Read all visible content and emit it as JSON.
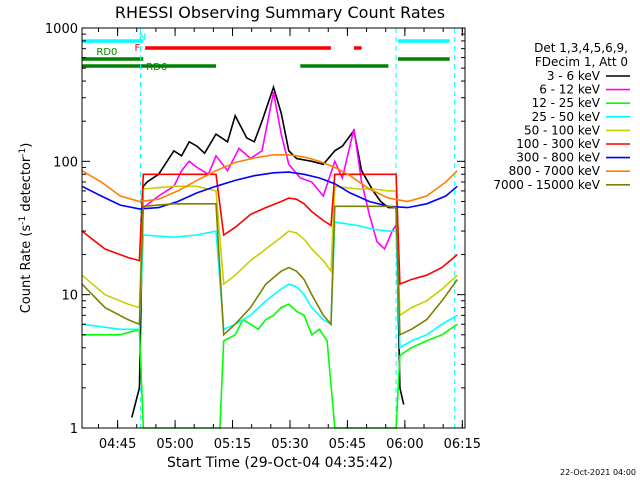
{
  "chart_data": {
    "type": "line",
    "title": "RHESSI Observing Summary Count Rates",
    "xlabel": "Start Time (29-Oct-04 04:35:42)",
    "ylabel_main": "Count Rate (s",
    "ylabel_sup": "-1",
    "ylabel_rest": " detector",
    "ylabel_sup2": "-1",
    "ylabel_close": ")",
    "y_scale": "log",
    "ylim": [
      1,
      1000
    ],
    "xlim_minutes": [
      0,
      100
    ],
    "y_ticks": [
      {
        "label": "1",
        "value": 1
      },
      {
        "label": "10",
        "value": 10
      },
      {
        "label": "100",
        "value": 100
      },
      {
        "label": "1000",
        "value": 1000
      }
    ],
    "x_ticks": [
      {
        "label": "04:45",
        "minute": 9.3
      },
      {
        "label": "05:00",
        "minute": 24.3
      },
      {
        "label": "05:15",
        "minute": 39.3
      },
      {
        "label": "05:30",
        "minute": 54.3
      },
      {
        "label": "05:45",
        "minute": 69.3
      },
      {
        "label": "06:00",
        "minute": 84.3
      },
      {
        "label": "06:15",
        "minute": 99.3
      }
    ],
    "legend_header": [
      "Det 1,3,4,5,6,9,",
      "FDecim 1, Att 0"
    ],
    "legend_position": "right",
    "flag_labels": {
      "night": "N",
      "flare": "F",
      "rd0": "RD0",
      "rd6": "RD6"
    },
    "flags": {
      "night": {
        "color": "#00ffff",
        "segments": [
          [
            0,
            16
          ],
          [
            82.5,
            96
          ]
        ]
      },
      "flare": {
        "color": "#ff0000",
        "segments": [
          [
            16.5,
            65
          ],
          [
            71,
            73
          ]
        ]
      },
      "rd0": {
        "color": "#008000",
        "segments": [
          [
            0,
            16
          ],
          [
            82.5,
            96
          ]
        ]
      },
      "rd6": {
        "color": "#008000",
        "segments": [
          [
            0,
            35
          ],
          [
            57,
            80
          ]
        ]
      }
    },
    "vlines": [
      {
        "minute": 15.3,
        "color": "#00ffff",
        "dashed": true
      },
      {
        "minute": 82.0,
        "color": "#00ffff",
        "dashed": true
      },
      {
        "minute": 97.3,
        "color": "#00ffff",
        "dashed": true
      }
    ],
    "series": [
      {
        "name": "3 - 6 keV",
        "color": "#000000",
        "points": [
          [
            13,
            1.2
          ],
          [
            15,
            2.0
          ],
          [
            16,
            65
          ],
          [
            17,
            70
          ],
          [
            20,
            80
          ],
          [
            24,
            120
          ],
          [
            26,
            110
          ],
          [
            28,
            140
          ],
          [
            30,
            130
          ],
          [
            32,
            115
          ],
          [
            35,
            160
          ],
          [
            38,
            140
          ],
          [
            40,
            220
          ],
          [
            43,
            150
          ],
          [
            45,
            140
          ],
          [
            47,
            200
          ],
          [
            50,
            360
          ],
          [
            52,
            230
          ],
          [
            54,
            120
          ],
          [
            56,
            105
          ],
          [
            60,
            100
          ],
          [
            63,
            95
          ],
          [
            66,
            120
          ],
          [
            68,
            130
          ],
          [
            71,
            170
          ],
          [
            73,
            85
          ],
          [
            76,
            60
          ],
          [
            78,
            50
          ],
          [
            80,
            45
          ],
          [
            82,
            45
          ],
          [
            83,
            2.0
          ],
          [
            84,
            1.5
          ]
        ]
      },
      {
        "name": "6 - 12 keV",
        "color": "#ff00ff",
        "points": [
          [
            16,
            45
          ],
          [
            20,
            55
          ],
          [
            24,
            65
          ],
          [
            26,
            85
          ],
          [
            28,
            100
          ],
          [
            30,
            90
          ],
          [
            33,
            80
          ],
          [
            35,
            110
          ],
          [
            38,
            85
          ],
          [
            41,
            125
          ],
          [
            44,
            105
          ],
          [
            47,
            120
          ],
          [
            50,
            330
          ],
          [
            52,
            160
          ],
          [
            54,
            95
          ],
          [
            57,
            75
          ],
          [
            60,
            70
          ],
          [
            63,
            55
          ],
          [
            66,
            100
          ],
          [
            68,
            75
          ],
          [
            71,
            175
          ],
          [
            73,
            70
          ],
          [
            75,
            40
          ],
          [
            77,
            25
          ],
          [
            79,
            22
          ],
          [
            81,
            30
          ],
          [
            82.5,
            35
          ]
        ]
      },
      {
        "name": "12 - 25 keV",
        "color": "#00ff00",
        "points": [
          [
            0,
            5
          ],
          [
            10,
            5
          ],
          [
            15,
            5.5
          ],
          [
            16,
            1.0
          ],
          [
            36,
            1.0
          ],
          [
            37,
            4.5
          ],
          [
            40,
            5
          ],
          [
            42,
            6.5
          ],
          [
            44,
            6
          ],
          [
            46,
            5.5
          ],
          [
            48,
            6.5
          ],
          [
            50,
            7
          ],
          [
            52,
            8
          ],
          [
            54,
            8.5
          ],
          [
            56,
            7.5
          ],
          [
            58,
            7
          ],
          [
            60,
            5
          ],
          [
            62,
            5.5
          ],
          [
            64,
            4.5
          ],
          [
            66,
            1.0
          ],
          [
            82,
            1.0
          ],
          [
            83,
            3.5
          ],
          [
            86,
            4
          ],
          [
            90,
            4.5
          ],
          [
            94,
            5
          ],
          [
            98,
            6
          ]
        ]
      },
      {
        "name": "25 - 50 keV",
        "color": "#00ffff",
        "points": [
          [
            0,
            6
          ],
          [
            10,
            5.5
          ],
          [
            15,
            5.5
          ],
          [
            16,
            28
          ],
          [
            24,
            27
          ],
          [
            30,
            28
          ],
          [
            35,
            30
          ],
          [
            37,
            5.5
          ],
          [
            40,
            6
          ],
          [
            44,
            7
          ],
          [
            48,
            9
          ],
          [
            52,
            11
          ],
          [
            54,
            12
          ],
          [
            56,
            11.5
          ],
          [
            58,
            10
          ],
          [
            60,
            8
          ],
          [
            63,
            6.5
          ],
          [
            65,
            6
          ],
          [
            66,
            35
          ],
          [
            72,
            33
          ],
          [
            76,
            31
          ],
          [
            80,
            30
          ],
          [
            82,
            30
          ],
          [
            83,
            4
          ],
          [
            86,
            4.5
          ],
          [
            90,
            5
          ],
          [
            94,
            6
          ],
          [
            98,
            7
          ]
        ]
      },
      {
        "name": "50 - 100 keV",
        "color": "#cccc00",
        "points": [
          [
            0,
            14
          ],
          [
            6,
            10
          ],
          [
            12,
            8.5
          ],
          [
            15,
            8
          ],
          [
            16,
            62
          ],
          [
            24,
            65
          ],
          [
            30,
            65
          ],
          [
            35,
            60
          ],
          [
            37,
            12
          ],
          [
            40,
            14
          ],
          [
            44,
            18
          ],
          [
            48,
            22
          ],
          [
            52,
            27
          ],
          [
            54,
            30
          ],
          [
            56,
            29
          ],
          [
            58,
            26
          ],
          [
            60,
            22
          ],
          [
            63,
            18
          ],
          [
            65,
            15
          ],
          [
            66,
            65
          ],
          [
            72,
            62
          ],
          [
            76,
            62
          ],
          [
            80,
            60
          ],
          [
            82,
            60
          ],
          [
            83,
            7
          ],
          [
            86,
            8
          ],
          [
            90,
            9
          ],
          [
            94,
            11
          ],
          [
            98,
            14
          ]
        ]
      },
      {
        "name": "100 - 300 keV",
        "color": "#ff0000",
        "points": [
          [
            0,
            30
          ],
          [
            6,
            22
          ],
          [
            12,
            19
          ],
          [
            15,
            18
          ],
          [
            16,
            80
          ],
          [
            24,
            80
          ],
          [
            30,
            80
          ],
          [
            35,
            80
          ],
          [
            37,
            28
          ],
          [
            40,
            32
          ],
          [
            44,
            40
          ],
          [
            48,
            45
          ],
          [
            52,
            50
          ],
          [
            54,
            53
          ],
          [
            56,
            52
          ],
          [
            58,
            48
          ],
          [
            60,
            42
          ],
          [
            63,
            36
          ],
          [
            65,
            33
          ],
          [
            66,
            80
          ],
          [
            72,
            80
          ],
          [
            76,
            80
          ],
          [
            80,
            80
          ],
          [
            82,
            80
          ],
          [
            83,
            12
          ],
          [
            86,
            13
          ],
          [
            90,
            14
          ],
          [
            94,
            16
          ],
          [
            98,
            20
          ]
        ]
      },
      {
        "name": "300 - 800 keV",
        "color": "#0000ff",
        "points": [
          [
            0,
            65
          ],
          [
            5,
            55
          ],
          [
            10,
            47
          ],
          [
            15,
            44
          ],
          [
            20,
            45
          ],
          [
            25,
            50
          ],
          [
            30,
            58
          ],
          [
            35,
            65
          ],
          [
            40,
            72
          ],
          [
            45,
            78
          ],
          [
            50,
            82
          ],
          [
            54,
            83
          ],
          [
            58,
            80
          ],
          [
            62,
            75
          ],
          [
            66,
            68
          ],
          [
            70,
            58
          ],
          [
            75,
            50
          ],
          [
            80,
            46
          ],
          [
            85,
            45
          ],
          [
            90,
            48
          ],
          [
            95,
            55
          ],
          [
            98,
            65
          ]
        ]
      },
      {
        "name": "800 - 7000 keV",
        "color": "#ff8000",
        "points": [
          [
            0,
            85
          ],
          [
            5,
            70
          ],
          [
            10,
            55
          ],
          [
            15,
            50
          ],
          [
            20,
            52
          ],
          [
            25,
            60
          ],
          [
            30,
            72
          ],
          [
            35,
            85
          ],
          [
            40,
            98
          ],
          [
            45,
            106
          ],
          [
            50,
            112
          ],
          [
            54,
            112
          ],
          [
            58,
            108
          ],
          [
            62,
            100
          ],
          [
            66,
            90
          ],
          [
            70,
            78
          ],
          [
            75,
            62
          ],
          [
            80,
            53
          ],
          [
            85,
            50
          ],
          [
            90,
            55
          ],
          [
            95,
            70
          ],
          [
            98,
            85
          ]
        ]
      },
      {
        "name": "7000 - 15000 keV",
        "color": "#808000",
        "points": [
          [
            0,
            12
          ],
          [
            6,
            8
          ],
          [
            12,
            6.5
          ],
          [
            15,
            6
          ],
          [
            16,
            46
          ],
          [
            24,
            48
          ],
          [
            30,
            48
          ],
          [
            35,
            48
          ],
          [
            37,
            5
          ],
          [
            40,
            6
          ],
          [
            44,
            8
          ],
          [
            48,
            12
          ],
          [
            52,
            15
          ],
          [
            54,
            16
          ],
          [
            56,
            15
          ],
          [
            58,
            13
          ],
          [
            60,
            10
          ],
          [
            63,
            7
          ],
          [
            65,
            6
          ],
          [
            66,
            46
          ],
          [
            72,
            46
          ],
          [
            76,
            46
          ],
          [
            80,
            46
          ],
          [
            82,
            45
          ],
          [
            83,
            5
          ],
          [
            86,
            5.5
          ],
          [
            90,
            6.5
          ],
          [
            94,
            9
          ],
          [
            98,
            13
          ]
        ]
      }
    ]
  },
  "footer_date": "22-Oct-2021 04:00"
}
